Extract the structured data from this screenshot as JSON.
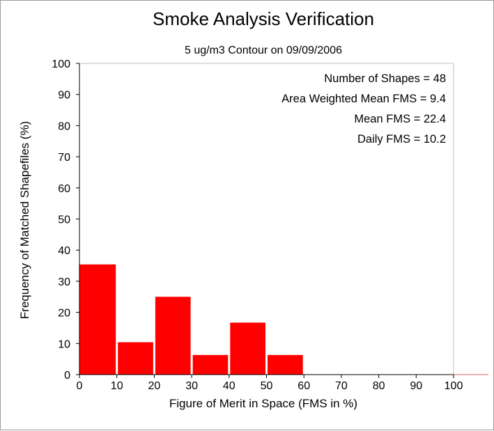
{
  "chart_data": {
    "type": "bar",
    "title": "Smoke Analysis Verification",
    "subtitle": "5 ug/m3 Contour on 09/09/2006",
    "xlabel": "Figure of Merit in Space (FMS in %)",
    "ylabel": "Frequency of Matched Shapefiles (%)",
    "xlim": [
      0,
      100
    ],
    "ylim": [
      0,
      100
    ],
    "xticks": [
      "0",
      "10",
      "20",
      "30",
      "40",
      "50",
      "60",
      "70",
      "80",
      "90",
      "100"
    ],
    "yticks": [
      "0",
      "10",
      "20",
      "30",
      "40",
      "50",
      "60",
      "70",
      "80",
      "90",
      "100"
    ],
    "bin_width": 10,
    "categories": [
      "0-10",
      "10-20",
      "20-30",
      "30-40",
      "40-50",
      "50-60",
      "60-70",
      "70-80",
      "80-90",
      "90-100"
    ],
    "values": [
      35.4,
      10.4,
      25.0,
      6.3,
      16.7,
      6.3,
      0,
      0,
      0,
      0
    ],
    "bar_color": "#ff0000",
    "grid": false,
    "annotations": [
      "Number of Shapes = 48",
      "Area Weighted Mean FMS = 9.4",
      "Mean FMS = 22.4",
      "Daily FMS = 10.2"
    ]
  }
}
